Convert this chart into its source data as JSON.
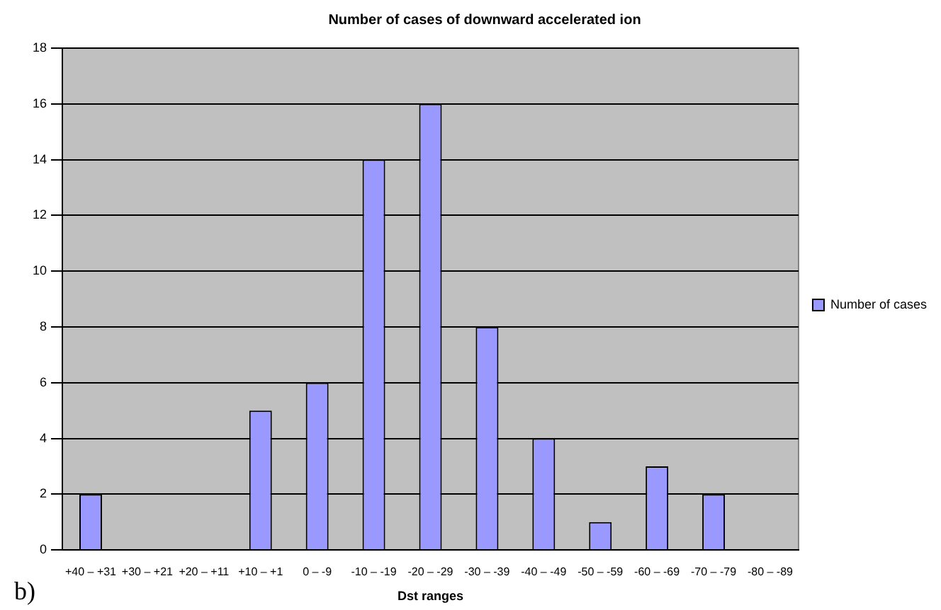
{
  "chart_data": {
    "type": "bar",
    "title": "Number of cases of downward accelerated ion",
    "xlabel": "Dst ranges",
    "categories": [
      "+40 – +31",
      "+30 – +21",
      "+20 – +11",
      "+10 – +1",
      "0 – -9",
      "-10 – -19",
      "-20 – -29",
      "-30 – -39",
      "-40 – -49",
      "-50 – -59",
      "-60 – -69",
      "-70 – -79",
      "-80 – -89"
    ],
    "series": [
      {
        "name": "Number of cases",
        "color": "#9999ff",
        "values": [
          2,
          0,
          0,
          5,
          6,
          14,
          16,
          8,
          4,
          1,
          3,
          2,
          0
        ]
      }
    ],
    "ylim": [
      0,
      18
    ],
    "yticks": [
      0,
      2,
      4,
      6,
      8,
      10,
      12,
      14,
      16,
      18
    ],
    "grid": "y",
    "legend": "right",
    "annotations": [
      "b)"
    ]
  }
}
